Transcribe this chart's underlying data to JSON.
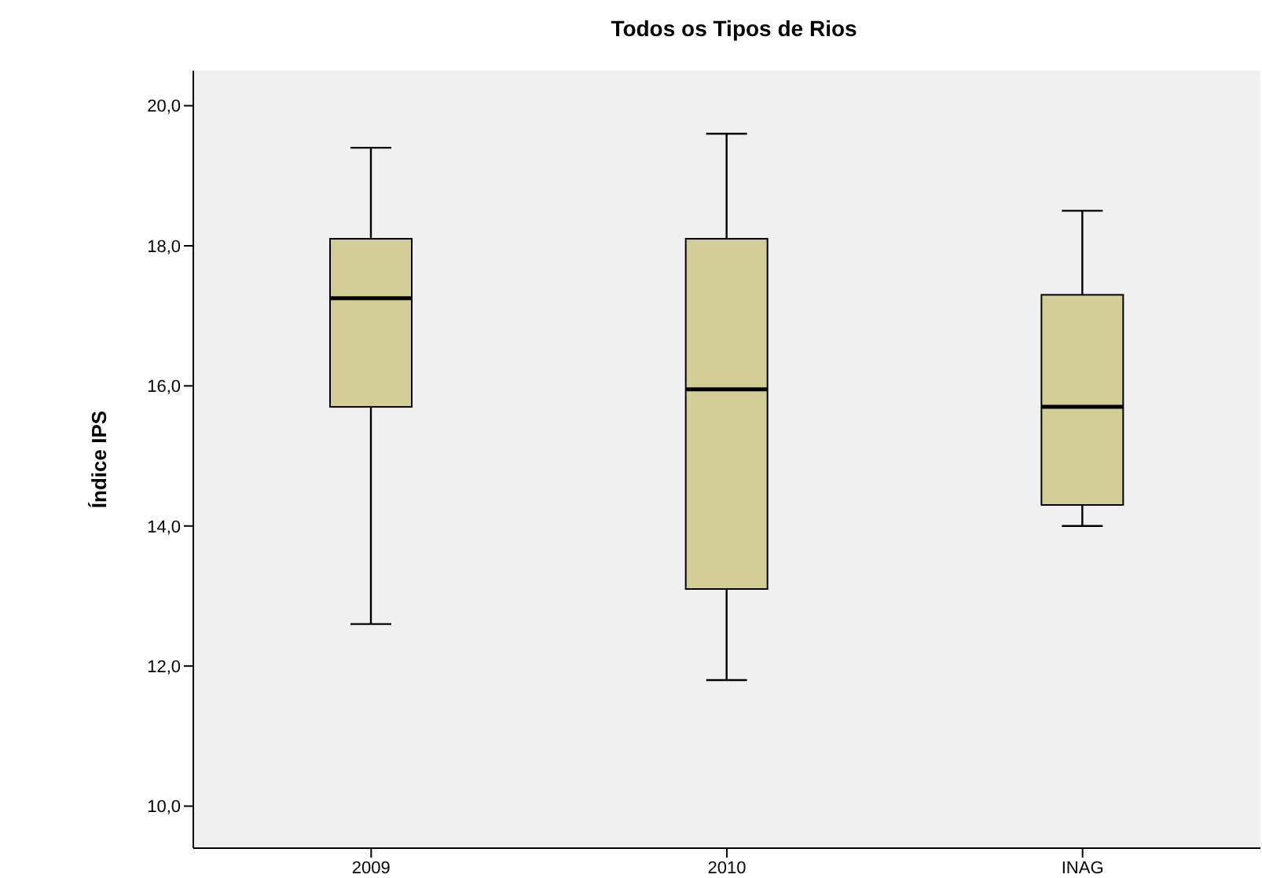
{
  "chart_data": {
    "type": "box",
    "title": "Todos os Tipos de Rios",
    "ylabel": "Índice IPS",
    "categories": [
      "2009",
      "2010",
      "INAG"
    ],
    "color": "#d3ce97",
    "boxes": [
      {
        "low": 12.6,
        "q1": 15.7,
        "median": 17.25,
        "q3": 18.1,
        "high": 19.4
      },
      {
        "low": 11.8,
        "q1": 13.1,
        "median": 15.95,
        "q3": 18.1,
        "high": 19.6
      },
      {
        "low": 14.0,
        "q1": 14.3,
        "median": 15.7,
        "q3": 17.3,
        "high": 18.5
      }
    ],
    "ylim": [
      9.4,
      20.5
    ],
    "yticks": [
      {
        "value": 10,
        "label": "10,0"
      },
      {
        "value": 12,
        "label": "12,0"
      },
      {
        "value": 14,
        "label": "14,0"
      },
      {
        "value": 16,
        "label": "16,0"
      },
      {
        "value": 18,
        "label": "18,0"
      },
      {
        "value": 20,
        "label": "20,0"
      }
    ],
    "grid": false,
    "legend": false
  }
}
